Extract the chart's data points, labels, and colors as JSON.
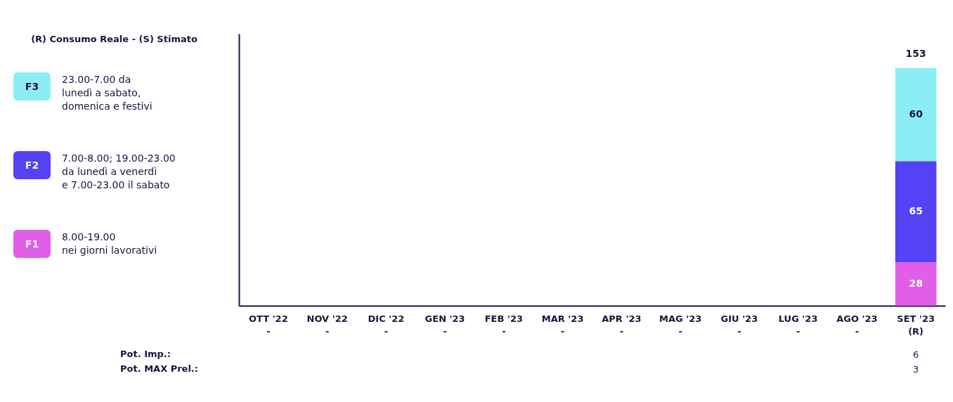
{
  "chart_data": {
    "type": "bar",
    "stacked": true,
    "legend_title": "(R) Consumo Reale - (S) Stimato",
    "legend": "left",
    "categories": [
      "OTT '22\n-",
      "NOV '22\n-",
      "DIC '22\n-",
      "GEN '23\n-",
      "FEB '23\n-",
      "MAR '23\n-",
      "APR '23\n-",
      "MAG '23\n-",
      "GIU '23\n-",
      "LUG '23\n-",
      "AGO '23\n-",
      "SET '23\n(R)"
    ],
    "series": [
      {
        "name": "F1",
        "color": "#e05ee8",
        "values": [
          null,
          null,
          null,
          null,
          null,
          null,
          null,
          null,
          null,
          null,
          null,
          28
        ]
      },
      {
        "name": "F2",
        "color": "#5542f5",
        "values": [
          null,
          null,
          null,
          null,
          null,
          null,
          null,
          null,
          null,
          null,
          null,
          65
        ]
      },
      {
        "name": "F3",
        "color": "#8beef4",
        "values": [
          null,
          null,
          null,
          null,
          null,
          null,
          null,
          null,
          null,
          null,
          null,
          60
        ]
      }
    ],
    "totals": [
      null,
      null,
      null,
      null,
      null,
      null,
      null,
      null,
      null,
      null,
      null,
      "153"
    ],
    "data_labels": true,
    "ylim": [
      0,
      175
    ],
    "annotations": [
      "8.00-19.00\nnei giorni lavorativi",
      "7.00-8.00; 19.00-23.00\nda lunedì a venerdì\ne 7.00-23.00 il sabato",
      "23.00-7.00 da\nlunedì a sabato,\ndomenica e festivi",
      "Pot. Imp.:",
      "Pot. MAX Prel.:",
      "6",
      "3"
    ]
  }
}
